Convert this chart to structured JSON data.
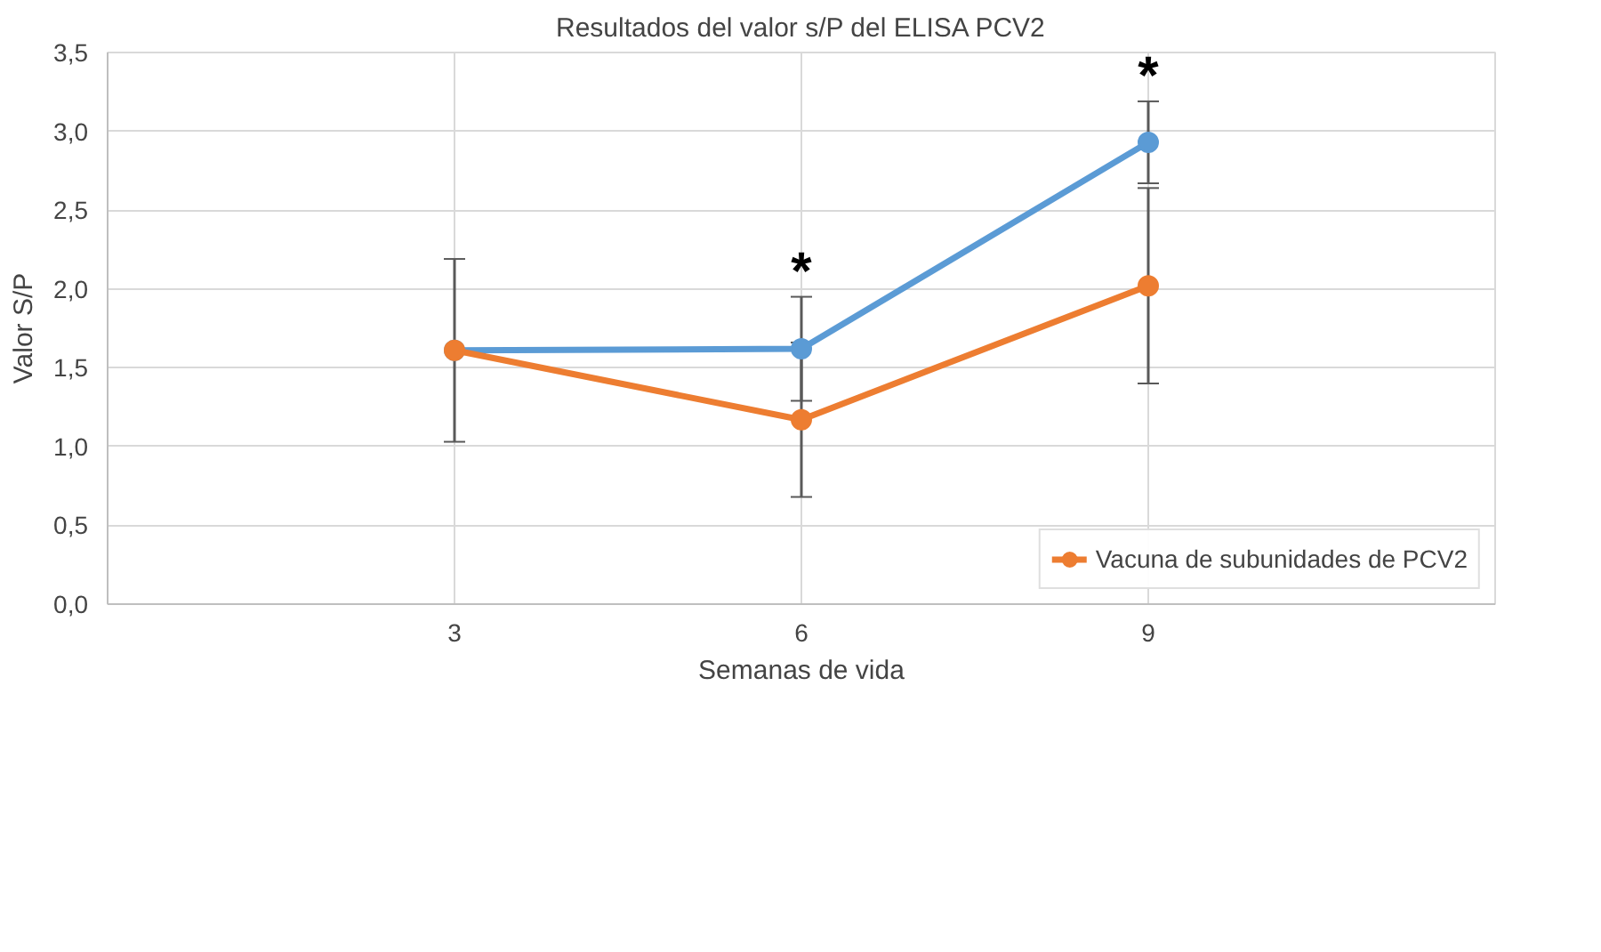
{
  "chart_data": {
    "type": "line",
    "title": "Resultados del valor s/P del ELISA PCV2",
    "xlabel": "Semanas de vida",
    "ylabel": "Valor S/P",
    "categories": [
      "3",
      "6",
      "9"
    ],
    "series": [
      {
        "color": "#5b9bd5",
        "values": [
          1.61,
          1.62,
          2.93
        ],
        "errors": [
          null,
          0.33,
          0.26
        ]
      },
      {
        "name": "Vacuna de subunidades de PCV2",
        "color": "#ed7d31",
        "values": [
          1.61,
          1.17,
          2.02
        ],
        "errors": [
          0.58,
          0.49,
          0.62
        ]
      }
    ],
    "ylim": [
      0,
      3.5
    ],
    "yticks": [
      {
        "value": 0,
        "label": "0,0"
      },
      {
        "value": 0.5,
        "label": "0,5"
      },
      {
        "value": 1,
        "label": "1,0"
      },
      {
        "value": 1.5,
        "label": "1,5"
      },
      {
        "value": 2,
        "label": "2,0"
      },
      {
        "value": 2.5,
        "label": "2,5"
      },
      {
        "value": 3,
        "label": "3,0"
      },
      {
        "value": 3.5,
        "label": "3,5"
      }
    ],
    "annotations": [
      "*",
      "*"
    ],
    "grid": true,
    "legend": "bottom right",
    "marker": "circle",
    "line_style": "solid"
  }
}
